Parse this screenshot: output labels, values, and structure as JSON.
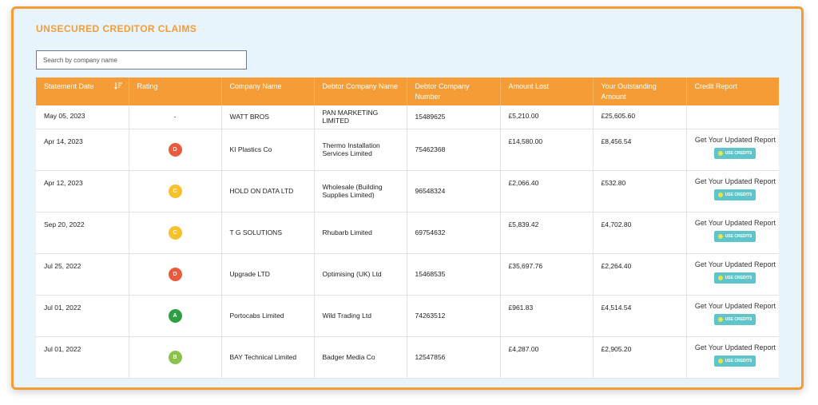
{
  "title": "UNSECURED CREDITOR CLAIMS",
  "search": {
    "placeholder": "Search by company name"
  },
  "colors": {
    "accent": "#f49c35",
    "teal": "#5ec5cb",
    "background": "#e8f4fc"
  },
  "columns": [
    "Statement Date",
    "Rating",
    "Company Name",
    "Debtor Company Name",
    "Debtor Company Number",
    "Amount Lost",
    "Your Outstanding Amount",
    "Credit Report"
  ],
  "rating_colors": {
    "A": "#2e9e44",
    "B": "#8bc34a",
    "C": "#f6c12b",
    "D": "#ea5a3c"
  },
  "credit_report": {
    "text": "Get Your Updated Report",
    "button": "USE CREDITS"
  },
  "rows": [
    {
      "date": "May 05, 2023",
      "rating": "-",
      "company": "WATT BROS",
      "debtor": "PAN MARKETING LIMITED",
      "number": "15489625",
      "lost": "£5,210.00",
      "outstanding": "£25,605.60",
      "report": false
    },
    {
      "date": "Apr 14, 2023",
      "rating": "D",
      "company": "KI Plastics Co",
      "debtor": "Thermo Installation Services Limited",
      "number": "75462368",
      "lost": "£14,580.00",
      "outstanding": "£8,456.54",
      "report": true
    },
    {
      "date": "Apr 12, 2023",
      "rating": "C",
      "company": "HOLD ON DATA LTD",
      "debtor": "Wholesale (Building Supplies Limited)",
      "number": "96548324",
      "lost": "£2,066.40",
      "outstanding": "£532.80",
      "report": true
    },
    {
      "date": "Sep 20, 2022",
      "rating": "C",
      "company": "T G SOLUTIONS",
      "debtor": "Rhubarb Limited",
      "number": "69754632",
      "lost": "£5,839.42",
      "outstanding": "£4,702.80",
      "report": true
    },
    {
      "date": "Jul 25, 2022",
      "rating": "D",
      "company": "Upgrade LTD",
      "debtor": "Optimising (UK) Ltd",
      "number": "15468535",
      "lost": "£35,697.76",
      "outstanding": "£2,264.40",
      "report": true
    },
    {
      "date": "Jul 01, 2022",
      "rating": "A",
      "company": "Portocabs Limited",
      "debtor": "Wild Trading Ltd",
      "number": "74263512",
      "lost": "£961.83",
      "outstanding": "£4,514.54",
      "report": true
    },
    {
      "date": "Jul 01, 2022",
      "rating": "B",
      "company": "BAY Technical Limited",
      "debtor": "Badger Media Co",
      "number": "12547856",
      "lost": "£4,287.00",
      "outstanding": "£2,905.20",
      "report": true
    }
  ]
}
